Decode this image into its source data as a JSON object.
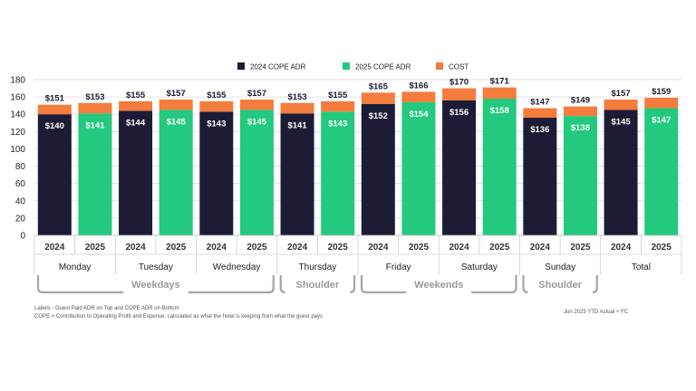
{
  "chart_data": {
    "type": "bar",
    "stacked": true,
    "ylim": [
      0,
      180
    ],
    "yticks": [
      0,
      20,
      40,
      60,
      80,
      100,
      120,
      140,
      160,
      180
    ],
    "grid": true,
    "legend_position": "top",
    "legend": [
      {
        "key": "cope2024",
        "label": "2024 COPE ADR",
        "color": "#1c1c36"
      },
      {
        "key": "cope2025",
        "label": "2025 COPE ADR",
        "color": "#22c97e"
      },
      {
        "key": "cost",
        "label": "COST",
        "color": "#f47c3c"
      }
    ],
    "days": [
      "Monday",
      "Tuesday",
      "Wednesday",
      "Thursday",
      "Friday",
      "Saturday",
      "Sunday",
      "Total"
    ],
    "bars": [
      {
        "day": "Monday",
        "year": "2024",
        "cope": 140,
        "total": 151,
        "cope_label": "$140",
        "total_label": "$151"
      },
      {
        "day": "Monday",
        "year": "2025",
        "cope": 141,
        "total": 153,
        "cope_label": "$141",
        "total_label": "$153"
      },
      {
        "day": "Tuesday",
        "year": "2024",
        "cope": 144,
        "total": 155,
        "cope_label": "$144",
        "total_label": "$155"
      },
      {
        "day": "Tuesday",
        "year": "2025",
        "cope": 145,
        "total": 157,
        "cope_label": "$145",
        "total_label": "$157"
      },
      {
        "day": "Wednesday",
        "year": "2024",
        "cope": 143,
        "total": 155,
        "cope_label": "$143",
        "total_label": "$155"
      },
      {
        "day": "Wednesday",
        "year": "2025",
        "cope": 145,
        "total": 157,
        "cope_label": "$145",
        "total_label": "$157"
      },
      {
        "day": "Thursday",
        "year": "2024",
        "cope": 141,
        "total": 153,
        "cope_label": "$141",
        "total_label": "$153"
      },
      {
        "day": "Thursday",
        "year": "2025",
        "cope": 143,
        "total": 155,
        "cope_label": "$143",
        "total_label": "$155"
      },
      {
        "day": "Friday",
        "year": "2024",
        "cope": 152,
        "total": 165,
        "cope_label": "$152",
        "total_label": "$165"
      },
      {
        "day": "Friday",
        "year": "2025",
        "cope": 154,
        "total": 166,
        "cope_label": "$154",
        "total_label": "$166"
      },
      {
        "day": "Saturday",
        "year": "2024",
        "cope": 156,
        "total": 170,
        "cope_label": "$156",
        "total_label": "$170"
      },
      {
        "day": "Saturday",
        "year": "2025",
        "cope": 158,
        "total": 171,
        "cope_label": "$158",
        "total_label": "$171"
      },
      {
        "day": "Sunday",
        "year": "2024",
        "cope": 136,
        "total": 147,
        "cope_label": "$136",
        "total_label": "$147"
      },
      {
        "day": "Sunday",
        "year": "2025",
        "cope": 138,
        "total": 149,
        "cope_label": "$138",
        "total_label": "$149"
      },
      {
        "day": "Total",
        "year": "2024",
        "cope": 145,
        "total": 157,
        "cope_label": "$145",
        "total_label": "$157"
      },
      {
        "day": "Total",
        "year": "2025",
        "cope": 147,
        "total": 159,
        "cope_label": "$147",
        "total_label": "$159"
      }
    ],
    "groups": [
      {
        "label": "Weekdays",
        "days": [
          "Monday",
          "Tuesday",
          "Wednesday"
        ]
      },
      {
        "label": "Shoulder",
        "days": [
          "Thursday"
        ]
      },
      {
        "label": "Weekends",
        "days": [
          "Friday",
          "Saturday"
        ]
      },
      {
        "label": "Shoulder",
        "days": [
          "Sunday"
        ]
      }
    ]
  },
  "footnotes": {
    "line1": "Labels - Guest Paid ADR on Top and COPE ADR on Bottom",
    "line2": "COPE = Contribution to Operating Profit and Expense, calculated as what the hotel is keeping from what the guest pays",
    "source": "Jun 2025 YTD Actual + FC"
  }
}
